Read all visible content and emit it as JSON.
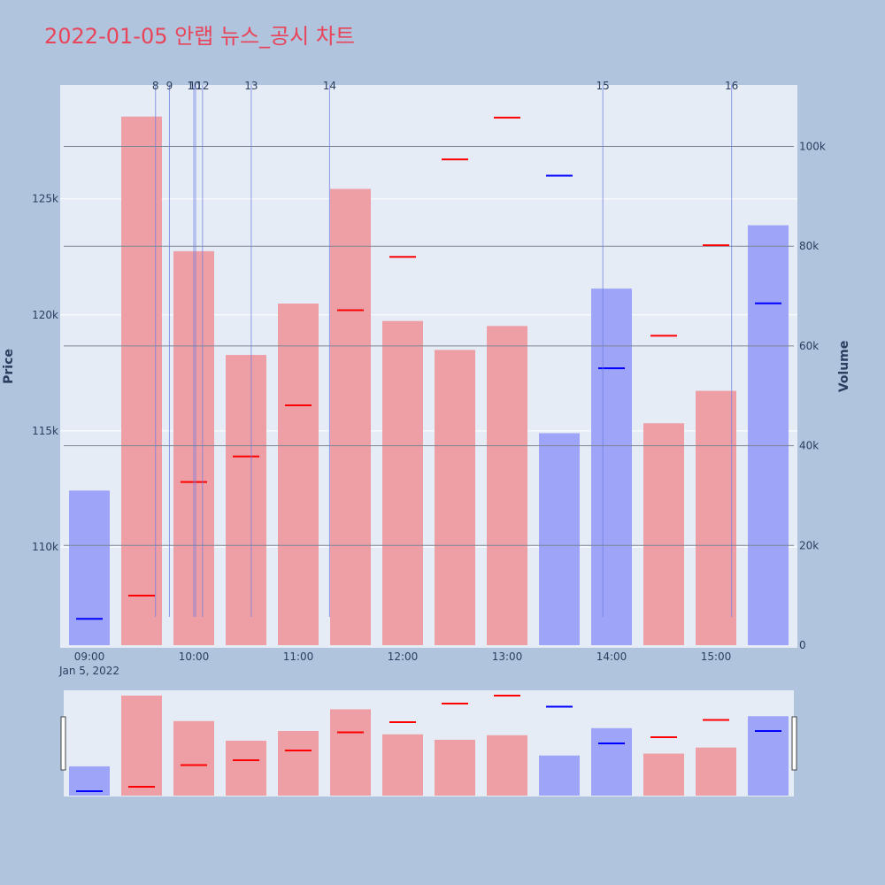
{
  "chart_data": {
    "type": "bar",
    "title": "2022-01-05 안랩 뉴스_공시 차트",
    "ylabel_left": "Price",
    "ylabel_right": "Volume",
    "x_date_label": "Jan 5, 2022",
    "x_tick_labels": [
      "09:00",
      "10:00",
      "11:00",
      "12:00",
      "13:00",
      "14:00",
      "15:00"
    ],
    "x_tick_times": [
      "09:00",
      "10:00",
      "11:00",
      "12:00",
      "13:00",
      "14:00",
      "15:00"
    ],
    "price_axis": {
      "range": [
        105500,
        129800
      ],
      "ticks": [
        110000,
        115000,
        120000,
        125000
      ],
      "tick_labels": [
        "110k",
        "115k",
        "120k",
        "125k"
      ]
    },
    "volume_axis": {
      "range": [
        0,
        112000
      ],
      "ticks": [
        0,
        20000,
        40000,
        60000,
        80000,
        100000
      ],
      "tick_labels": [
        "0",
        "20k",
        "40k",
        "60k",
        "80k",
        "100k"
      ]
    },
    "times": [
      "09:00",
      "09:30",
      "10:00",
      "10:30",
      "11:00",
      "11:30",
      "12:00",
      "12:30",
      "13:00",
      "13:30",
      "14:00",
      "14:30",
      "15:00",
      "15:30"
    ],
    "volume": [
      31000,
      106000,
      79000,
      58200,
      68500,
      91500,
      65000,
      59200,
      64000,
      42500,
      71500,
      44500,
      51000,
      84200
    ],
    "volume_direction": [
      "down",
      "up",
      "up",
      "up",
      "up",
      "up",
      "up",
      "up",
      "up",
      "down",
      "down",
      "up",
      "up",
      "down"
    ],
    "price": [
      106900,
      107900,
      112800,
      113900,
      116100,
      120200,
      122500,
      126700,
      128500,
      126000,
      117700,
      119100,
      123000,
      120500
    ],
    "price_direction": [
      "down",
      "up",
      "up",
      "up",
      "up",
      "up",
      "up",
      "up",
      "up",
      "down",
      "down",
      "up",
      "up",
      "down"
    ],
    "volume_gridlines": [
      20000,
      40000,
      60000,
      80000,
      100000
    ],
    "news_markers": [
      {
        "label": "8",
        "time": "09:38"
      },
      {
        "label": "9",
        "time": "09:46"
      },
      {
        "label": "10",
        "time": "10:00"
      },
      {
        "label": "11",
        "time": "10:01"
      },
      {
        "label": "12",
        "time": "10:05"
      },
      {
        "label": "13",
        "time": "10:33"
      },
      {
        "label": "14",
        "time": "11:18"
      },
      {
        "label": "15",
        "time": "13:55"
      },
      {
        "label": "16",
        "time": "15:09"
      }
    ],
    "colors": {
      "up_bar": "#ee9fa6",
      "down_bar": "#9ea4f7",
      "up_price": "#ff0000",
      "down_price": "#0000ff",
      "marker_line": "#6d7de0",
      "plot_bg": "#e5ecf6",
      "page_bg": "#b0c4de",
      "title": "#e8445a"
    },
    "legend": "none",
    "grid": true,
    "range_slider": true
  }
}
